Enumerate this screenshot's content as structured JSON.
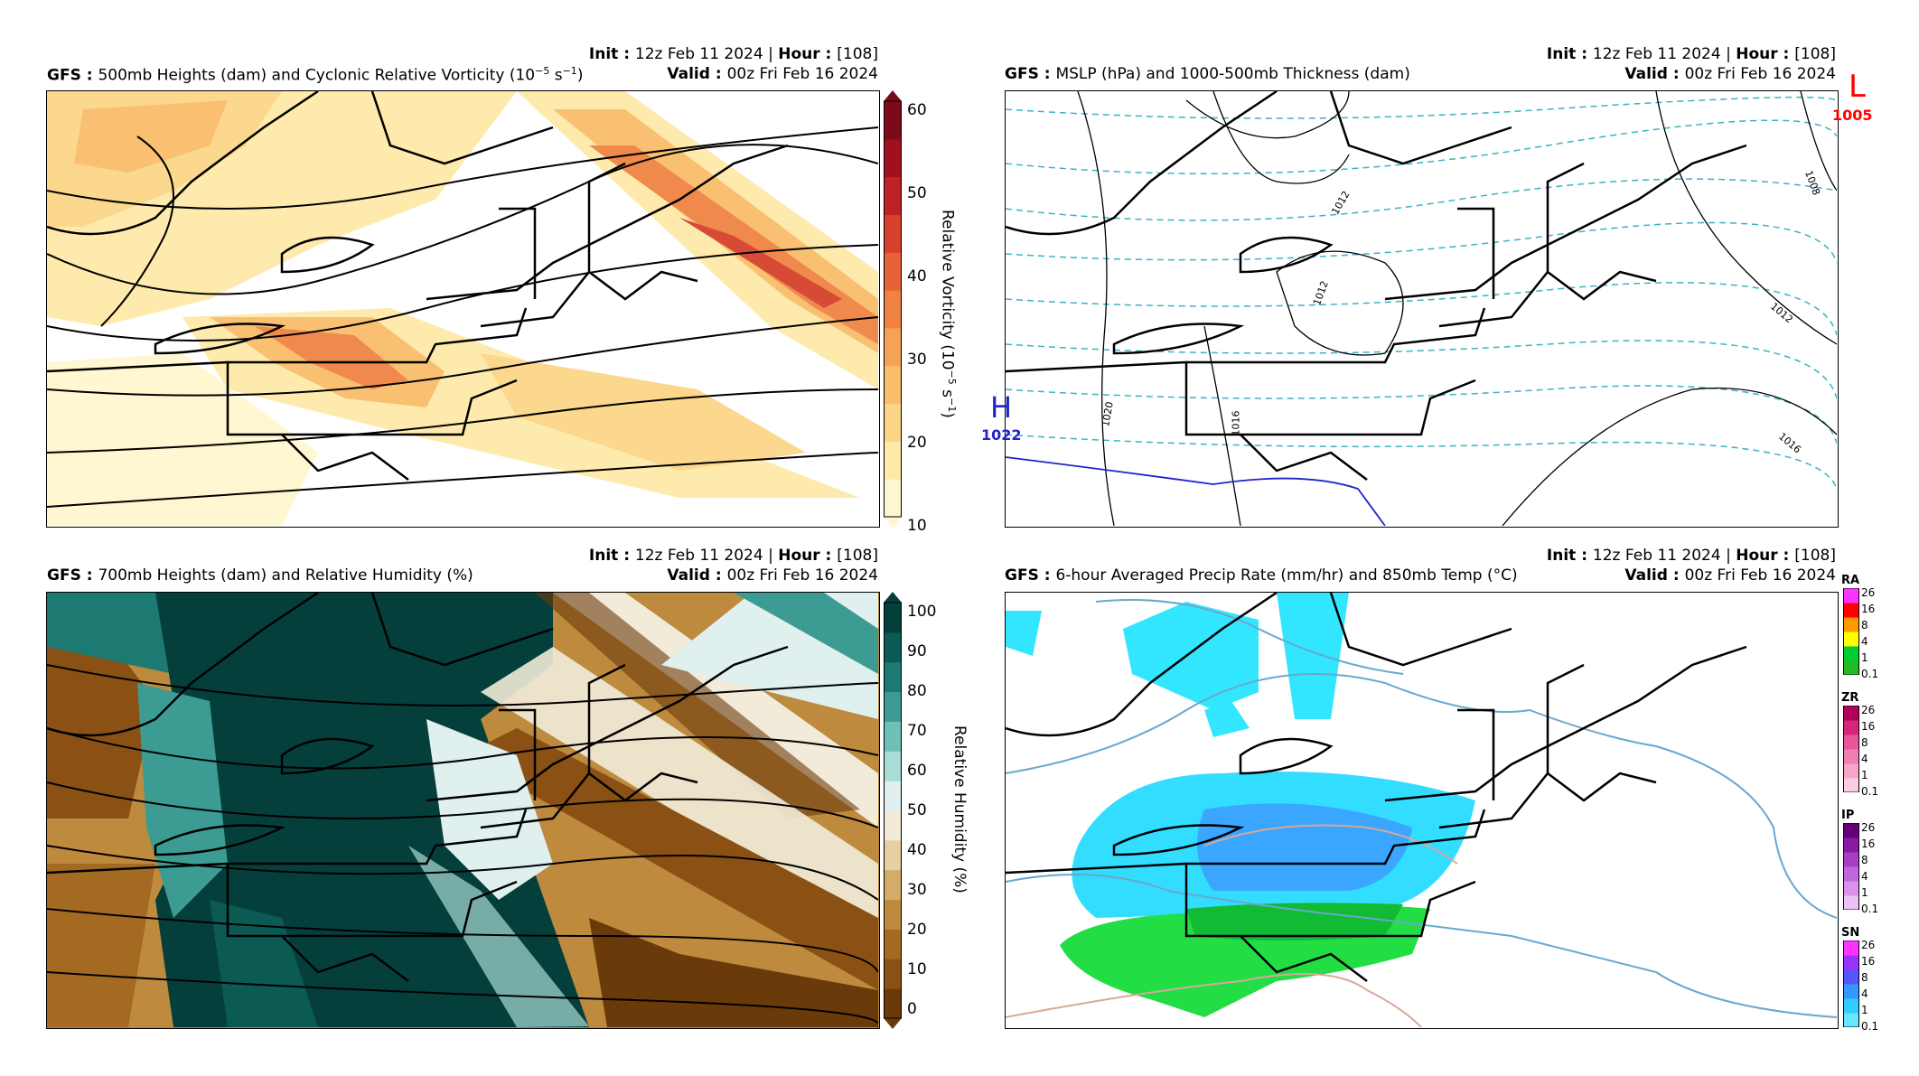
{
  "panels": [
    {
      "id": "p1",
      "model": "GFS",
      "title": "500mb Heights (dam) and Cyclonic Relative Vorticity (10",
      "title_sup": "−5",
      "title_mid": " s",
      "title_sup2": "−1",
      "title_end": ")",
      "init_label": "Init",
      "init_value": "12z Feb 11 2024",
      "hour_label": "Hour",
      "hour_value": "[108]",
      "valid_label": "Valid",
      "valid_value": "00z Fri Feb 16 2024",
      "colorbar": {
        "label": "Relative Vorticity (10",
        "label_sup": "−5",
        "label_mid": " s",
        "label_sup2": "−1",
        "label_end": ")",
        "ticks": [
          "60",
          "50",
          "40",
          "30",
          "20",
          "10"
        ],
        "colors": [
          "#fff6d0",
          "#fde9a8",
          "#fcd589",
          "#f9bd6b",
          "#f6a255",
          "#f08343",
          "#e46235",
          "#d5412c",
          "#bf2226",
          "#a0101f",
          "#7d0a1a"
        ]
      }
    },
    {
      "id": "p2",
      "model": "GFS",
      "title": "MSLP (hPa) and 1000-500mb Thickness (dam)",
      "init_label": "Init",
      "init_value": "12z Feb 11 2024",
      "hour_label": "Hour",
      "hour_value": "[108]",
      "valid_label": "Valid",
      "valid_value": "00z Fri Feb 16 2024",
      "low": {
        "symbol": "L",
        "value": "1005",
        "color": "#ff0000"
      },
      "high": {
        "symbol": "H",
        "value": "1022",
        "color": "#0000ff"
      },
      "isobar_labels": [
        "1012",
        "1012",
        "1008",
        "1012",
        "1016",
        "1016",
        "1020"
      ]
    },
    {
      "id": "p3",
      "model": "GFS",
      "title": "700mb Heights (dam) and Relative Humidity (%)",
      "init_label": "Init",
      "init_value": "12z Feb 11 2024",
      "hour_label": "Hour",
      "hour_value": "[108]",
      "valid_label": "Valid",
      "valid_value": "00z Fri Feb 16 2024",
      "colorbar": {
        "label": "Relative Humidity (%)",
        "ticks": [
          "100",
          "90",
          "80",
          "70",
          "60",
          "50",
          "40",
          "30",
          "20",
          "10",
          "0"
        ],
        "colors": [
          "#6b3a0b",
          "#8a5014",
          "#a56a22",
          "#bd8a3e",
          "#d3ac6a",
          "#e6cfa0",
          "#f2ebd9",
          "#dff0ee",
          "#a9dcd5",
          "#6fc0b6",
          "#3c9c93",
          "#1d7a73",
          "#0b5a54",
          "#053f3b"
        ]
      }
    },
    {
      "id": "p4",
      "model": "GFS",
      "title": "6-hour Averaged Precip Rate (mm/hr) and 850mb Temp (°C)",
      "init_label": "Init",
      "init_value": "12z Feb 11 2024",
      "hour_label": "Hour",
      "hour_value": "[108]",
      "valid_label": "Valid",
      "valid_value": "00z Fri Feb 16 2024",
      "ptype_bars": [
        {
          "name": "RA",
          "ticks": [
            "26",
            "16",
            "8",
            "4",
            "1",
            "0.1"
          ],
          "colors": [
            "#ff33ff",
            "#ff0000",
            "#ff9900",
            "#ffff00",
            "#00cc33",
            "#22bb22"
          ]
        },
        {
          "name": "ZR",
          "ticks": [
            "26",
            "16",
            "8",
            "4",
            "1",
            "0.1"
          ],
          "colors": [
            "#b3005a",
            "#d6267a",
            "#e8559a",
            "#f27fb4",
            "#f7a6cb",
            "#fbcde2"
          ]
        },
        {
          "name": "IP",
          "ticks": [
            "26",
            "16",
            "8",
            "4",
            "1",
            "0.1"
          ],
          "colors": [
            "#66007a",
            "#8a1aa3",
            "#a83ec4",
            "#c266dc",
            "#d993ec",
            "#ecc2f6"
          ]
        },
        {
          "name": "SN",
          "ticks": [
            "26",
            "16",
            "8",
            "4",
            "1",
            "0.1"
          ],
          "colors": [
            "#ff33ff",
            "#9933ff",
            "#5555ff",
            "#3399ff",
            "#33ccff",
            "#66e6ff"
          ]
        }
      ]
    }
  ]
}
